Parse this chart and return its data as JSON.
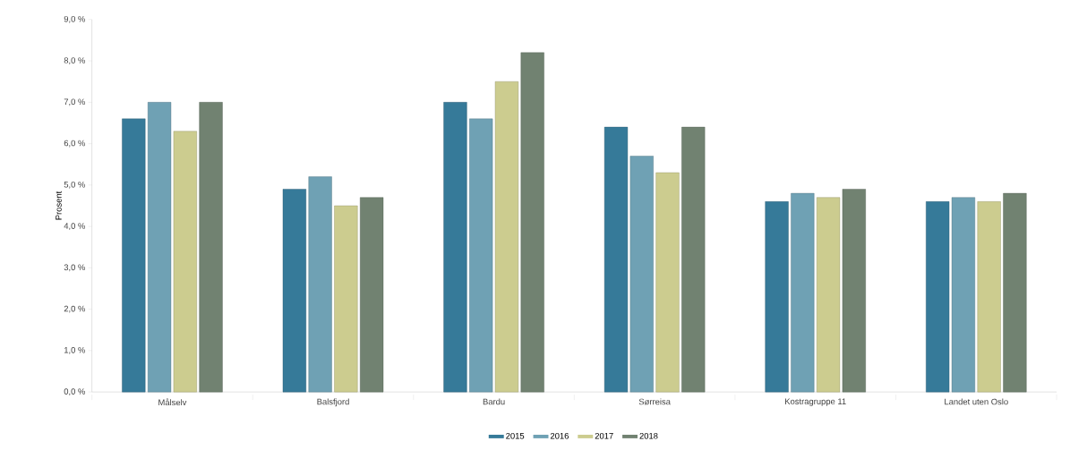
{
  "chart_data": {
    "type": "bar",
    "ylabel": "Prosent",
    "categories": [
      "Målselv",
      "Balsfjord",
      "Bardu",
      "Sørreisa",
      "Kostragruppe 11",
      "Landet uten Oslo"
    ],
    "series": [
      {
        "name": "2015",
        "color": "#367a99",
        "values": [
          6.6,
          4.9,
          7.0,
          6.4,
          4.6,
          4.6
        ]
      },
      {
        "name": "2016",
        "color": "#6fa1b4",
        "values": [
          7.0,
          5.2,
          6.6,
          5.7,
          4.8,
          4.7
        ]
      },
      {
        "name": "2017",
        "color": "#cccc8f",
        "values": [
          6.3,
          4.5,
          7.5,
          5.3,
          4.7,
          4.6
        ]
      },
      {
        "name": "2018",
        "color": "#718271",
        "values": [
          7.0,
          4.7,
          8.2,
          6.4,
          4.9,
          4.8
        ]
      }
    ],
    "ylim": [
      0,
      9
    ],
    "yticks": [
      {
        "value": 0,
        "label": "0,0 %"
      },
      {
        "value": 1,
        "label": "1,0 %"
      },
      {
        "value": 2,
        "label": "2,0 %"
      },
      {
        "value": 3,
        "label": "3,0 %"
      },
      {
        "value": 4,
        "label": "4,0 %"
      },
      {
        "value": 5,
        "label": "5,0 %"
      },
      {
        "value": 6,
        "label": "6,0 %"
      },
      {
        "value": 7,
        "label": "7,0 %"
      },
      {
        "value": 8,
        "label": "8,0 %"
      },
      {
        "value": 9,
        "label": "9,0 %"
      }
    ],
    "grid": false,
    "legend": "bottom"
  }
}
